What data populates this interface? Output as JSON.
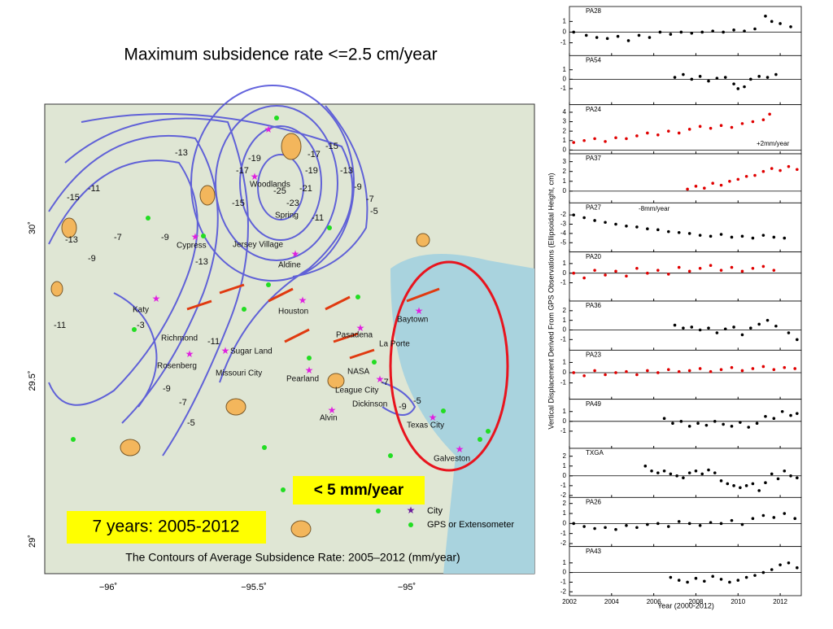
{
  "title": "Maximum subsidence rate <=2.5 cm/year",
  "map": {
    "caption": "The Contours of Average Subsidence Rate: 2005–2012 (mm/year)",
    "callouts": [
      "< 5 mm/year",
      "7  years: 2005-2012"
    ],
    "legend": {
      "city": "City",
      "gps": "GPS or Extensometer"
    },
    "lon_ticks": [
      "−96˚",
      "−95.5˚",
      "−95˚"
    ],
    "lat_ticks": [
      "30˚",
      "29.5˚",
      "29˚"
    ],
    "city_labels": [
      "Woodlands",
      "Spring",
      "Cypress",
      "Jersey Village",
      "Aldine",
      "Katy",
      "Houston",
      "Baytown",
      "Richmond",
      "Sugar Land",
      "Pasadena",
      "La Porte",
      "Rosenberg",
      "Missouri City",
      "NASA",
      "Pearland",
      "League City",
      "Dickinson",
      "Alvin",
      "Texas City",
      "Galveston"
    ],
    "contour_labels": [
      "-13",
      "-15",
      "-17",
      "-19",
      "-21",
      "-23",
      "-25",
      "-19",
      "-17",
      "-15",
      "-13",
      "-11",
      "-9",
      "-7",
      "-5",
      "-11",
      "-13",
      "-15",
      "-9",
      "-7",
      "-9",
      "-11",
      "-13",
      "-11",
      "-9",
      "-7",
      "-5",
      "-3",
      "-9",
      "-7",
      "-5"
    ]
  },
  "time_axis": {
    "xlim": [
      2002,
      2013
    ],
    "xticks": [
      2002,
      2004,
      2006,
      2008,
      2010,
      2012
    ],
    "xlabel": "Year (2000-2012)",
    "ylabel": "Vertical Displacement Derived From GPS Observations (Ellipsoidal Height, cm)"
  },
  "chart_data": [
    {
      "type": "scatter",
      "title": "PA28",
      "color": "#000000",
      "ylim": [
        -2.2,
        2.4
      ],
      "yticks": [
        1,
        0,
        -1
      ],
      "x": [
        2002.2,
        2002.8,
        2003.3,
        2003.8,
        2004.3,
        2004.8,
        2005.3,
        2005.8,
        2006.3,
        2006.8,
        2007.3,
        2007.8,
        2008.3,
        2008.8,
        2009.3,
        2009.8,
        2010.3,
        2010.8,
        2011.3,
        2011.6,
        2012.0,
        2012.5
      ],
      "values": [
        0,
        -0.3,
        -0.5,
        -0.6,
        -0.4,
        -0.8,
        -0.3,
        -0.5,
        0,
        -0.2,
        0,
        -0.1,
        0,
        0.1,
        0,
        0.2,
        0.1,
        0.3,
        1.5,
        1,
        0.8,
        0.5
      ]
    },
    {
      "type": "scatter",
      "title": "PA54",
      "color": "#000000",
      "ylim": [
        -2.7,
        2.5
      ],
      "yticks": [
        1,
        0,
        -1
      ],
      "x": [
        2007.0,
        2007.4,
        2007.8,
        2008.2,
        2008.6,
        2009.0,
        2009.4,
        2009.8,
        2010.0,
        2010.3,
        2010.6,
        2011.0,
        2011.4,
        2011.8
      ],
      "values": [
        0.2,
        0.5,
        0,
        0.3,
        -0.2,
        0.1,
        0.2,
        -0.5,
        -1,
        -0.8,
        0,
        0.3,
        0.2,
        0.5
      ]
    },
    {
      "type": "scatter",
      "title": "PA24",
      "color": "#e00000",
      "ylim": [
        -0.4,
        4.8
      ],
      "yticks": [
        4,
        3,
        2,
        1,
        0
      ],
      "annotation": "+2mm/year",
      "x": [
        2002.2,
        2002.7,
        2003.2,
        2003.7,
        2004.2,
        2004.7,
        2005.2,
        2005.7,
        2006.2,
        2006.7,
        2007.2,
        2007.7,
        2008.2,
        2008.7,
        2009.2,
        2009.7,
        2010.2,
        2010.7,
        2011.2,
        2011.5
      ],
      "values": [
        0.8,
        1,
        1.2,
        0.9,
        1.3,
        1.2,
        1.5,
        1.8,
        1.6,
        2,
        1.8,
        2.2,
        2.5,
        2.3,
        2.6,
        2.4,
        2.8,
        3,
        3.2,
        3.8
      ]
    },
    {
      "type": "scatter",
      "title": "PA37",
      "color": "#e00000",
      "ylim": [
        -1.2,
        3.8
      ],
      "yticks": [
        3,
        2,
        1,
        0
      ],
      "x": [
        2007.6,
        2008.0,
        2008.4,
        2008.8,
        2009.2,
        2009.6,
        2010.0,
        2010.4,
        2010.8,
        2011.2,
        2011.6,
        2012.0,
        2012.4,
        2012.8
      ],
      "values": [
        0.2,
        0.5,
        0.3,
        0.8,
        0.6,
        1,
        1.2,
        1.5,
        1.6,
        2,
        2.3,
        2.1,
        2.5,
        2.2
      ]
    },
    {
      "type": "scatter",
      "title": "PA27",
      "color": "#000000",
      "ylim": [
        -6.0,
        -0.7
      ],
      "yticks": [
        -2,
        -3,
        -4,
        -5
      ],
      "annotation": "-8mm/year",
      "x": [
        2002.2,
        2002.7,
        2003.2,
        2003.7,
        2004.2,
        2004.7,
        2005.2,
        2005.7,
        2006.2,
        2006.7,
        2007.2,
        2007.7,
        2008.2,
        2008.7,
        2009.2,
        2009.7,
        2010.2,
        2010.7,
        2011.2,
        2011.7,
        2012.2
      ],
      "values": [
        -2,
        -2.3,
        -2.6,
        -2.8,
        -3,
        -3.2,
        -3.3,
        -3.5,
        -3.6,
        -3.8,
        -3.9,
        -4,
        -4.2,
        -4.3,
        -4.1,
        -4.4,
        -4.3,
        -4.5,
        -4.2,
        -4.4,
        -4.5
      ]
    },
    {
      "type": "scatter",
      "title": "PA20",
      "color": "#e00000",
      "ylim": [
        -2.9,
        2.2
      ],
      "yticks": [
        1,
        0,
        -1
      ],
      "x": [
        2002.2,
        2002.7,
        2003.2,
        2003.7,
        2004.2,
        2004.7,
        2005.2,
        2005.7,
        2006.2,
        2006.7,
        2007.2,
        2007.7,
        2008.2,
        2008.7,
        2009.2,
        2009.7,
        2010.2,
        2010.7,
        2011.2,
        2011.7
      ],
      "values": [
        0,
        -0.5,
        0.3,
        -0.2,
        0.2,
        -0.3,
        0.5,
        0,
        0.3,
        -0.1,
        0.6,
        0.2,
        0.5,
        0.8,
        0.3,
        0.6,
        0.2,
        0.5,
        0.7,
        0.3
      ]
    },
    {
      "type": "scatter",
      "title": "PA36",
      "color": "#000000",
      "ylim": [
        -2.1,
        3.0
      ],
      "yticks": [
        2,
        1,
        0,
        -1
      ],
      "x": [
        2007.0,
        2007.4,
        2007.8,
        2008.2,
        2008.6,
        2009.0,
        2009.4,
        2009.8,
        2010.2,
        2010.6,
        2011.0,
        2011.4,
        2011.8,
        2012.4,
        2012.8
      ],
      "values": [
        0.5,
        0.2,
        0.3,
        0,
        0.2,
        -0.3,
        0.1,
        0.3,
        -0.5,
        0.2,
        0.6,
        1,
        0.4,
        -0.3,
        -1
      ]
    },
    {
      "type": "scatter",
      "title": "PA23",
      "color": "#e00000",
      "ylim": [
        -2.6,
        2.2
      ],
      "yticks": [
        1,
        0,
        -1
      ],
      "x": [
        2002.2,
        2002.7,
        2003.2,
        2003.7,
        2004.2,
        2004.7,
        2005.2,
        2005.7,
        2006.2,
        2006.7,
        2007.2,
        2007.7,
        2008.2,
        2008.7,
        2009.2,
        2009.7,
        2010.2,
        2010.7,
        2011.2,
        2011.7,
        2012.2,
        2012.7
      ],
      "values": [
        0,
        -0.3,
        0.2,
        -0.2,
        0,
        0.1,
        -0.2,
        0.2,
        0,
        0.3,
        0.1,
        0.2,
        0.4,
        0.1,
        0.3,
        0.5,
        0.2,
        0.4,
        0.6,
        0.3,
        0.5,
        0.4
      ]
    },
    {
      "type": "scatter",
      "title": "PA49",
      "color": "#000000",
      "ylim": [
        -2.75,
        2.25
      ],
      "yticks": [
        1,
        0,
        -1
      ],
      "x": [
        2006.5,
        2006.9,
        2007.3,
        2007.7,
        2008.1,
        2008.5,
        2008.9,
        2009.3,
        2009.7,
        2010.1,
        2010.5,
        2010.9,
        2011.3,
        2011.7,
        2012.1,
        2012.5,
        2012.8
      ],
      "values": [
        0.3,
        -0.2,
        0,
        -0.5,
        -0.2,
        -0.4,
        0,
        -0.3,
        -0.5,
        -0.1,
        -0.6,
        -0.2,
        0.5,
        0.3,
        1,
        0.6,
        0.8
      ]
    },
    {
      "type": "scatter",
      "title": "TXGA",
      "color": "#000000",
      "ylim": [
        -2.2,
        2.8
      ],
      "yticks": [
        2,
        1,
        0,
        -1,
        -2
      ],
      "x": [
        2005.6,
        2005.9,
        2006.2,
        2006.5,
        2006.8,
        2007.1,
        2007.4,
        2007.7,
        2008.0,
        2008.3,
        2008.6,
        2008.9,
        2009.2,
        2009.5,
        2009.8,
        2010.1,
        2010.4,
        2010.7,
        2011.0,
        2011.3,
        2011.6,
        2011.9,
        2012.2,
        2012.5,
        2012.8
      ],
      "values": [
        1,
        0.5,
        0.3,
        0.5,
        0.2,
        0,
        -0.2,
        0.3,
        0.5,
        0.2,
        0.6,
        0.3,
        -0.5,
        -0.8,
        -1,
        -1.2,
        -1,
        -0.8,
        -1.5,
        -0.7,
        0.2,
        -0.3,
        0.5,
        0,
        -0.2
      ]
    },
    {
      "type": "scatter",
      "title": "PA26",
      "color": "#000000",
      "ylim": [
        -2.3,
        2.6
      ],
      "yticks": [
        2,
        1,
        0,
        -1,
        -2
      ],
      "x": [
        2002.2,
        2002.7,
        2003.2,
        2003.7,
        2004.2,
        2004.7,
        2005.2,
        2005.7,
        2006.2,
        2006.7,
        2007.2,
        2007.7,
        2008.2,
        2008.7,
        2009.2,
        2009.7,
        2010.2,
        2010.7,
        2011.2,
        2011.7,
        2012.2,
        2012.7
      ],
      "values": [
        0,
        -0.3,
        -0.5,
        -0.4,
        -0.6,
        -0.2,
        -0.4,
        -0.1,
        0,
        -0.3,
        0.2,
        0,
        -0.2,
        0.1,
        0,
        0.3,
        -0.1,
        0.5,
        0.8,
        0.6,
        1,
        0.5
      ]
    },
    {
      "type": "scatter",
      "title": "PA43",
      "color": "#000000",
      "ylim": [
        -2.4,
        2.7
      ],
      "yticks": [
        1,
        0,
        -1,
        -2
      ],
      "x": [
        2006.8,
        2007.2,
        2007.6,
        2008.0,
        2008.4,
        2008.8,
        2009.2,
        2009.6,
        2010.0,
        2010.4,
        2010.8,
        2011.2,
        2011.6,
        2012.0,
        2012.4,
        2012.8
      ],
      "values": [
        -0.5,
        -0.8,
        -1,
        -0.6,
        -0.9,
        -0.4,
        -0.7,
        -1,
        -0.8,
        -0.5,
        -0.3,
        0,
        0.3,
        0.8,
        1,
        0.5
      ]
    }
  ]
}
